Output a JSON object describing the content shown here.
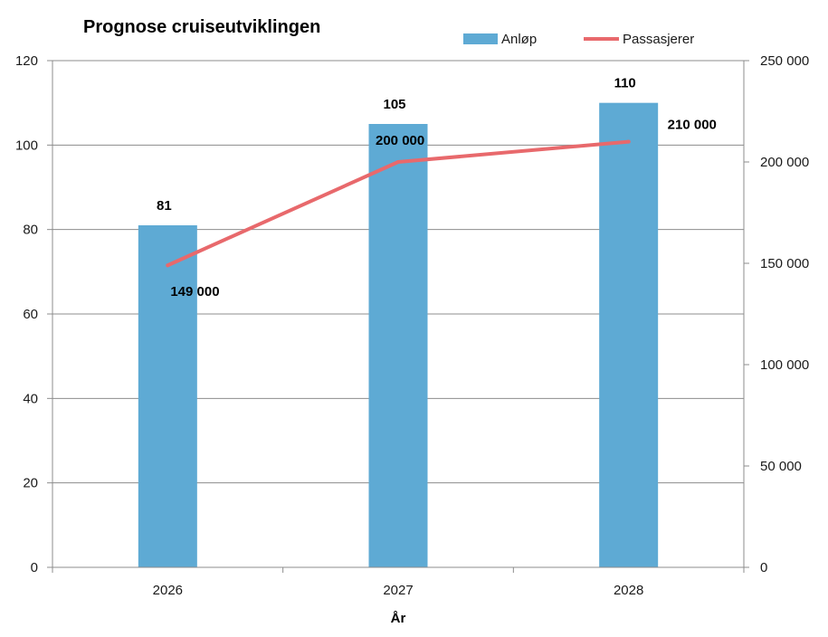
{
  "chart_data": {
    "type": "bar",
    "title": "Prognose cruiseutviklingen",
    "xlabel": "År",
    "ylabel": "",
    "y2label": "",
    "categories": [
      "2026",
      "2027",
      "2028"
    ],
    "ylim": [
      0,
      120
    ],
    "y2lim": [
      0,
      250000
    ],
    "y_ticks": [
      "0",
      "20",
      "40",
      "60",
      "80",
      "100",
      "120"
    ],
    "y2_ticks": [
      "0",
      "50 000",
      "100 000",
      "150 000",
      "200 000",
      "250 000"
    ],
    "grid": true,
    "legend_position": "top-right",
    "series": [
      {
        "name": "Anløp",
        "type": "bar",
        "axis": "left",
        "values": [
          81,
          105,
          110
        ],
        "labels": [
          "81",
          "105",
          "110"
        ],
        "color": "#5eaad4"
      },
      {
        "name": "Passasjerer",
        "type": "line",
        "axis": "right",
        "values": [
          149000,
          200000,
          210000
        ],
        "labels": [
          "149 000",
          "200 000",
          "210 000"
        ],
        "color": "#e8696c"
      }
    ]
  }
}
